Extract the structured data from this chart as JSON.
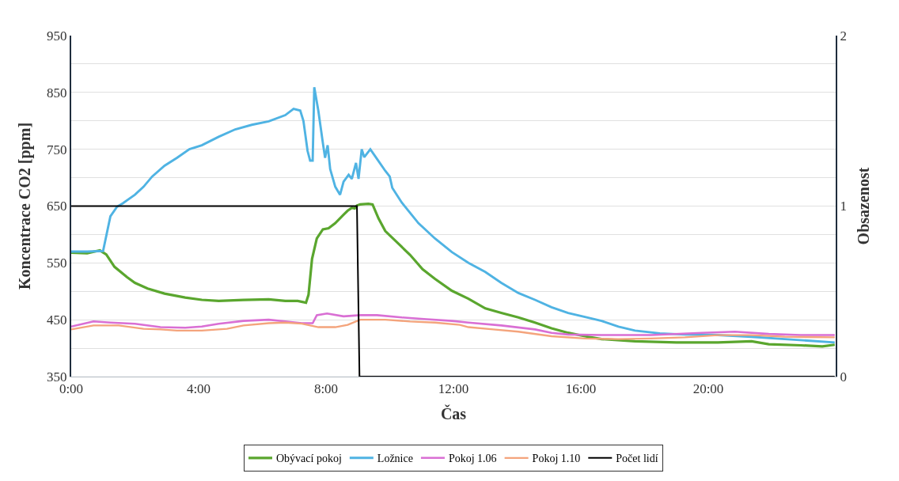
{
  "chart_data": {
    "type": "line",
    "xlabel": "Čas",
    "ylabel": "Koncentrace CO2 [ppm]",
    "y2label": "Obsazenost",
    "xlim": [
      0,
      24
    ],
    "xticks": [
      {
        "value": 0,
        "label": "0:00"
      },
      {
        "value": 4,
        "label": "4:00"
      },
      {
        "value": 8,
        "label": "8:00"
      },
      {
        "value": 12,
        "label": "12:00"
      },
      {
        "value": 16,
        "label": "16:00"
      },
      {
        "value": 20,
        "label": "20:00"
      }
    ],
    "ylim": [
      350,
      950
    ],
    "yticks": [
      350,
      {
        "value": 400,
        "label": null
      },
      450,
      {
        "value": 500,
        "label": null
      },
      550,
      {
        "value": 600,
        "label": null
      },
      650,
      {
        "value": 700,
        "label": null
      },
      750,
      {
        "value": 800,
        "label": null
      },
      850,
      {
        "value": 900,
        "label": null
      },
      950
    ],
    "y2lim": [
      0,
      2
    ],
    "y2ticks": [
      0,
      1,
      2
    ],
    "grid": "y",
    "legend": "bottom",
    "marker": "none",
    "line_style": "solid",
    "series": [
      {
        "name": "Obývací pokoj",
        "color": "#5aa62e",
        "x": [
          0,
          0.5,
          0.9,
          1.1,
          1.36,
          1.75,
          2.0,
          2.4,
          2.93,
          3.58,
          4.1,
          4.63,
          5.41,
          6.2,
          6.72,
          7.11,
          7.37,
          7.45,
          7.56,
          7.71,
          7.9,
          8.08,
          8.29,
          8.55,
          8.68,
          8.81,
          8.9,
          8.97,
          9.07,
          9.33,
          9.46,
          9.65,
          9.86,
          10.25,
          10.64,
          11.03,
          11.42,
          11.95,
          12.47,
          13.0,
          13.5,
          14.04,
          14.56,
          15.08,
          15.6,
          16.13,
          16.65,
          17.7,
          19.0,
          20.3,
          21.36,
          21.9,
          22.9,
          23.58,
          23.97
        ],
        "values": [
          568,
          567,
          572,
          565,
          543,
          525,
          515,
          505,
          496,
          489,
          485,
          483,
          485,
          486,
          483,
          483,
          480,
          494,
          557,
          593,
          609,
          611,
          620,
          635,
          642,
          647,
          646,
          651,
          653,
          654,
          653,
          628,
          606,
          585,
          564,
          539,
          522,
          501,
          487,
          470,
          462,
          454,
          445,
          435,
          427,
          421,
          416,
          412,
          410,
          410,
          412,
          407,
          405,
          403,
          406
        ]
      },
      {
        "name": "Ložnice",
        "color": "#4fb3e3",
        "x": [
          0,
          0.5,
          1.0,
          1.23,
          1.44,
          1.62,
          2.0,
          2.27,
          2.54,
          2.93,
          3.32,
          3.71,
          4.1,
          4.63,
          5.15,
          5.67,
          6.2,
          6.72,
          6.98,
          7.19,
          7.29,
          7.42,
          7.5,
          7.58,
          7.63,
          7.76,
          7.9,
          7.97,
          8.05,
          8.13,
          8.29,
          8.44,
          8.55,
          8.71,
          8.81,
          8.94,
          9.02,
          9.12,
          9.2,
          9.39,
          9.6,
          9.86,
          10.0,
          10.08,
          10.38,
          10.9,
          11.42,
          11.95,
          12.47,
          13.0,
          13.5,
          14.04,
          14.56,
          15.08,
          15.6,
          16.13,
          16.65,
          17.18,
          17.7,
          18.48,
          19.27,
          20.3,
          21.36,
          22.4,
          23.19,
          23.97
        ],
        "values": [
          570,
          570,
          571,
          632,
          649,
          655,
          670,
          684,
          702,
          721,
          735,
          750,
          757,
          772,
          785,
          793,
          799,
          810,
          821,
          818,
          800,
          747,
          730,
          730,
          859,
          817,
          761,
          735,
          757,
          715,
          684,
          670,
          693,
          705,
          698,
          726,
          698,
          750,
          736,
          750,
          733,
          712,
          702,
          682,
          656,
          620,
          593,
          569,
          550,
          534,
          515,
          497,
          485,
          472,
          462,
          455,
          448,
          438,
          431,
          426,
          424,
          423,
          420,
          416,
          413,
          410
        ]
      },
      {
        "name": "Pokoj 1.06",
        "color": "#d96fd4",
        "x": [
          0,
          0.7,
          1.23,
          2.0,
          2.8,
          3.58,
          4.1,
          4.63,
          5.41,
          6.2,
          6.72,
          7.24,
          7.58,
          7.71,
          8.03,
          8.55,
          9.07,
          9.6,
          10.38,
          11.16,
          11.95,
          12.47,
          13.5,
          14.56,
          15.08,
          15.6,
          16.65,
          18.2,
          19.8,
          20.84,
          21.9,
          22.9,
          23.97
        ],
        "values": [
          438,
          447,
          445,
          443,
          437,
          436,
          438,
          443,
          448,
          450,
          447,
          444,
          444,
          458,
          461,
          456,
          458,
          458,
          454,
          451,
          448,
          445,
          440,
          433,
          427,
          424,
          423,
          423,
          427,
          429,
          425,
          423,
          423
        ]
      },
      {
        "name": "Pokoj 1.10",
        "color": "#f4a47c",
        "x": [
          0,
          0.7,
          1.49,
          2.27,
          2.8,
          3.32,
          4.1,
          4.89,
          5.41,
          6.2,
          6.72,
          7.24,
          7.76,
          8.29,
          8.68,
          9.07,
          9.86,
          10.64,
          11.42,
          12.2,
          12.47,
          13.25,
          14.04,
          15.08,
          16.13,
          17.18,
          18.2,
          19.27,
          20.3,
          21.36,
          22.4,
          23.97
        ],
        "values": [
          433,
          440,
          440,
          434,
          433,
          431,
          431,
          434,
          440,
          444,
          445,
          443,
          437,
          437,
          441,
          450,
          450,
          447,
          445,
          441,
          437,
          433,
          429,
          421,
          417,
          416,
          417,
          419,
          423,
          423,
          420,
          419
        ]
      },
      {
        "name": "Počet lidí",
        "color": "#000000",
        "axis": "y2",
        "x": [
          0,
          8.97,
          9.05,
          23.97
        ],
        "values": [
          1,
          1,
          0,
          0
        ]
      }
    ]
  }
}
